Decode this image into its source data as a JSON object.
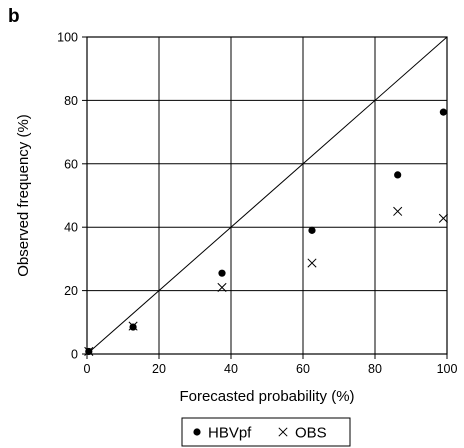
{
  "chart_data": {
    "type": "scatter",
    "panel_label": "b",
    "xlabel": "Forecasted probability (%)",
    "ylabel": "Observed frequency (%)",
    "xlim": [
      0,
      100
    ],
    "ylim": [
      0,
      100
    ],
    "xticks": [
      0,
      20,
      40,
      60,
      80,
      100
    ],
    "yticks": [
      0,
      20,
      40,
      60,
      80,
      100
    ],
    "grid": true,
    "diagonal_reference_line": true,
    "legend_position": "bottom-center",
    "series": [
      {
        "name": "HBVpf",
        "marker": "filled-circle",
        "points": [
          {
            "x": 0.5,
            "y": 0.8
          },
          {
            "x": 12.8,
            "y": 8.5
          },
          {
            "x": 37.5,
            "y": 25.5
          },
          {
            "x": 62.5,
            "y": 39.0
          },
          {
            "x": 86.3,
            "y": 56.5
          },
          {
            "x": 99.0,
            "y": 76.3
          }
        ]
      },
      {
        "name": "OBS",
        "marker": "x-cross",
        "points": [
          {
            "x": 0.5,
            "y": 0.8
          },
          {
            "x": 12.8,
            "y": 8.8
          },
          {
            "x": 37.5,
            "y": 21.0
          },
          {
            "x": 62.5,
            "y": 28.7
          },
          {
            "x": 86.3,
            "y": 45.0
          },
          {
            "x": 99.0,
            "y": 42.8
          }
        ]
      }
    ]
  }
}
